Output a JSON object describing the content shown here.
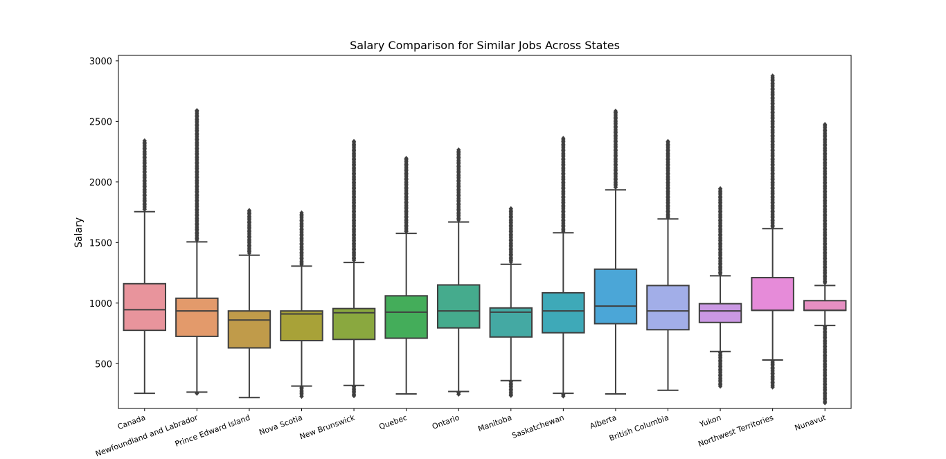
{
  "chart_data": {
    "type": "box",
    "title": "Salary Comparison for Similar Jobs Across States",
    "xlabel": "",
    "ylabel": "Salary",
    "ylim": [
      130,
      3045
    ],
    "yticks": [
      500,
      1000,
      1500,
      2000,
      2500,
      3000
    ],
    "grid": false,
    "categories": [
      "Canada",
      "Newfoundland and Labrador",
      "Prince Edward Island",
      "Nova Scotia",
      "New Brunswick",
      "Quebec",
      "Ontario",
      "Manitoba",
      "Saskatchewan",
      "Alberta",
      "British Columbia",
      "Yukon",
      "Northwest Territories",
      "Nunavut"
    ],
    "boxes": [
      {
        "name": "Canada",
        "color": "#e8949c",
        "whislo": 255,
        "q1": 775,
        "median": 945,
        "q3": 1160,
        "whishi": 1755,
        "fliers_low": [],
        "fliers_high": [
          1765,
          2340
        ]
      },
      {
        "name": "Newfoundland and Labrador",
        "color": "#e39a6b",
        "whislo": 265,
        "q1": 725,
        "median": 935,
        "q3": 1040,
        "whishi": 1505,
        "fliers_low": [
          245,
          255
        ],
        "fliers_high": [
          1515,
          2590
        ]
      },
      {
        "name": "Prince Edward Island",
        "color": "#c09b4a",
        "whislo": 220,
        "q1": 630,
        "median": 860,
        "q3": 935,
        "whishi": 1395,
        "fliers_low": [],
        "fliers_high": [
          1405,
          1765
        ]
      },
      {
        "name": "Nova Scotia",
        "color": "#a8a238",
        "whislo": 315,
        "q1": 690,
        "median": 910,
        "q3": 935,
        "whishi": 1305,
        "fliers_low": [
          220,
          305
        ],
        "fliers_high": [
          1315,
          1745
        ]
      },
      {
        "name": "New Brunswick",
        "color": "#8aa83f",
        "whislo": 320,
        "q1": 700,
        "median": 920,
        "q3": 955,
        "whishi": 1335,
        "fliers_low": [
          225,
          310
        ],
        "fliers_high": [
          1345,
          2335
        ]
      },
      {
        "name": "Quebec",
        "color": "#44ad5a",
        "whislo": 250,
        "q1": 710,
        "median": 925,
        "q3": 1060,
        "whishi": 1575,
        "fliers_low": [],
        "fliers_high": [
          1585,
          2195
        ]
      },
      {
        "name": "Ontario",
        "color": "#45ab8d",
        "whislo": 270,
        "q1": 795,
        "median": 935,
        "q3": 1150,
        "whishi": 1670,
        "fliers_low": [
          240,
          260
        ],
        "fliers_high": [
          1680,
          2265
        ]
      },
      {
        "name": "Manitoba",
        "color": "#44a9a3",
        "whislo": 360,
        "q1": 720,
        "median": 925,
        "q3": 960,
        "whishi": 1320,
        "fliers_low": [
          235,
          350
        ],
        "fliers_high": [
          1330,
          1780
        ]
      },
      {
        "name": "Saskatchewan",
        "color": "#3ea9b8",
        "whislo": 255,
        "q1": 755,
        "median": 935,
        "q3": 1085,
        "whishi": 1580,
        "fliers_low": [
          225,
          245
        ],
        "fliers_high": [
          1590,
          2360
        ]
      },
      {
        "name": "Alberta",
        "color": "#4ba6d7",
        "whislo": 250,
        "q1": 830,
        "median": 975,
        "q3": 1280,
        "whishi": 1935,
        "fliers_low": [],
        "fliers_high": [
          1945,
          2585
        ]
      },
      {
        "name": "British Columbia",
        "color": "#a2aee8",
        "whislo": 280,
        "q1": 780,
        "median": 935,
        "q3": 1145,
        "whishi": 1695,
        "fliers_low": [],
        "fliers_high": [
          1705,
          2335
        ]
      },
      {
        "name": "Yukon",
        "color": "#ca98e3",
        "whislo": 600,
        "q1": 840,
        "median": 935,
        "q3": 995,
        "whishi": 1225,
        "fliers_low": [
          310,
          590
        ],
        "fliers_high": [
          1235,
          1945
        ]
      },
      {
        "name": "Northwest Territories",
        "color": "#e68bd9",
        "whislo": 530,
        "q1": 940,
        "median": 940,
        "q3": 1210,
        "whishi": 1615,
        "fliers_low": [
          300,
          520
        ],
        "fliers_high": [
          1625,
          2875
        ]
      },
      {
        "name": "Nunavut",
        "color": "#e68fc2",
        "whislo": 815,
        "q1": 940,
        "median": 940,
        "q3": 1020,
        "whishi": 1145,
        "fliers_low": [
          170,
          805
        ],
        "fliers_high": [
          1155,
          2475
        ]
      }
    ]
  }
}
